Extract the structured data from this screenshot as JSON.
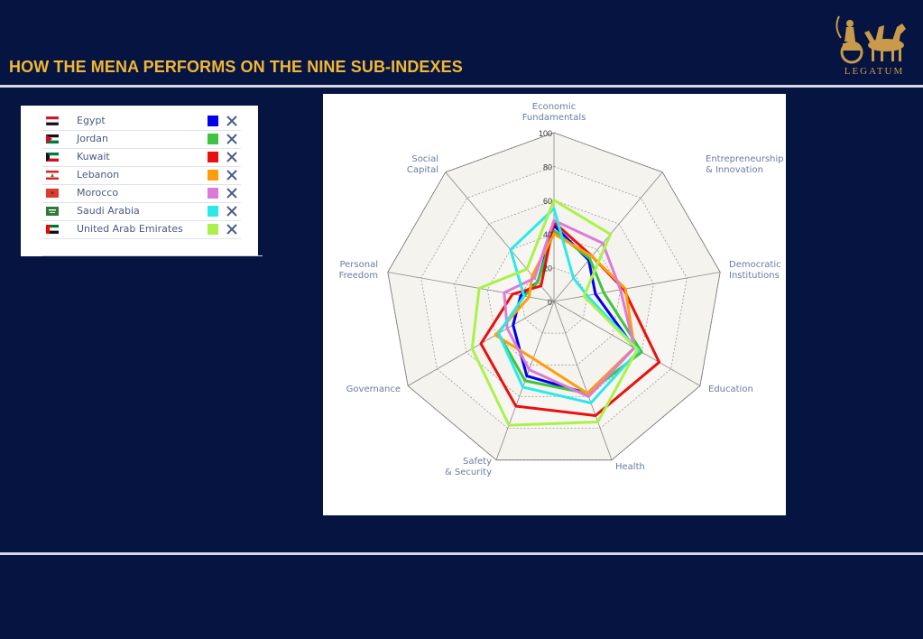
{
  "header": {
    "title": "HOW THE MENA PERFORMS ON THE NINE SUB-INDEXES"
  },
  "logo": {
    "text": "LEGATUM",
    "icon": "chariot-icon"
  },
  "legend": {
    "items": [
      {
        "label": "Egypt",
        "color": "#0000ee",
        "flag": "egypt-flag-icon"
      },
      {
        "label": "Jordan",
        "color": "#3ec43e",
        "flag": "jordan-flag-icon"
      },
      {
        "label": "Kuwait",
        "color": "#e91010",
        "flag": "kuwait-flag-icon"
      },
      {
        "label": "Lebanon",
        "color": "#ff9d0a",
        "flag": "lebanon-flag-icon"
      },
      {
        "label": "Morocco",
        "color": "#dc7ad8",
        "flag": "morocco-flag-icon"
      },
      {
        "label": "Saudi Arabia",
        "color": "#2de8ea",
        "flag": "saudi-arabia-flag-icon"
      },
      {
        "label": "United Arab Emirates",
        "color": "#aaf24a",
        "flag": "uae-flag-icon"
      }
    ],
    "remove_icon": "close-icon"
  },
  "chart_data": {
    "type": "radar",
    "title": "",
    "axes": [
      "Economic\nFundamentals",
      "Entrepreneurship\n& Innovation",
      "Democratic\nInstitutions",
      "Education",
      "Health",
      "Safety\n& Security",
      "Governance",
      "Personal\nFreedom",
      "Social\nCapital"
    ],
    "ticks": [
      "0",
      "20",
      "40",
      "60",
      "80",
      "100"
    ],
    "range": [
      0,
      100
    ],
    "series": [
      {
        "name": "Egypt",
        "color": "#0000ee",
        "values": [
          45,
          32,
          25,
          55,
          58,
          47,
          28,
          20,
          15
        ]
      },
      {
        "name": "Jordan",
        "color": "#3ec43e",
        "values": [
          42,
          33,
          30,
          60,
          58,
          50,
          38,
          18,
          15
        ]
      },
      {
        "name": "Kuwait",
        "color": "#e91010",
        "values": [
          47,
          35,
          42,
          72,
          72,
          66,
          50,
          25,
          12
        ]
      },
      {
        "name": "Lebanon",
        "color": "#ff9d0a",
        "values": [
          40,
          35,
          43,
          55,
          58,
          36,
          40,
          15,
          20
        ]
      },
      {
        "name": "Morocco",
        "color": "#dc7ad8",
        "values": [
          48,
          45,
          40,
          55,
          60,
          43,
          32,
          30,
          18
        ]
      },
      {
        "name": "Saudi Arabia",
        "color": "#2de8ea",
        "values": [
          55,
          18,
          20,
          58,
          64,
          54,
          38,
          18,
          40
        ]
      },
      {
        "name": "United Arab Emirates",
        "color": "#aaf24a",
        "values": [
          60,
          52,
          18,
          57,
          76,
          78,
          56,
          45,
          25
        ]
      }
    ]
  }
}
